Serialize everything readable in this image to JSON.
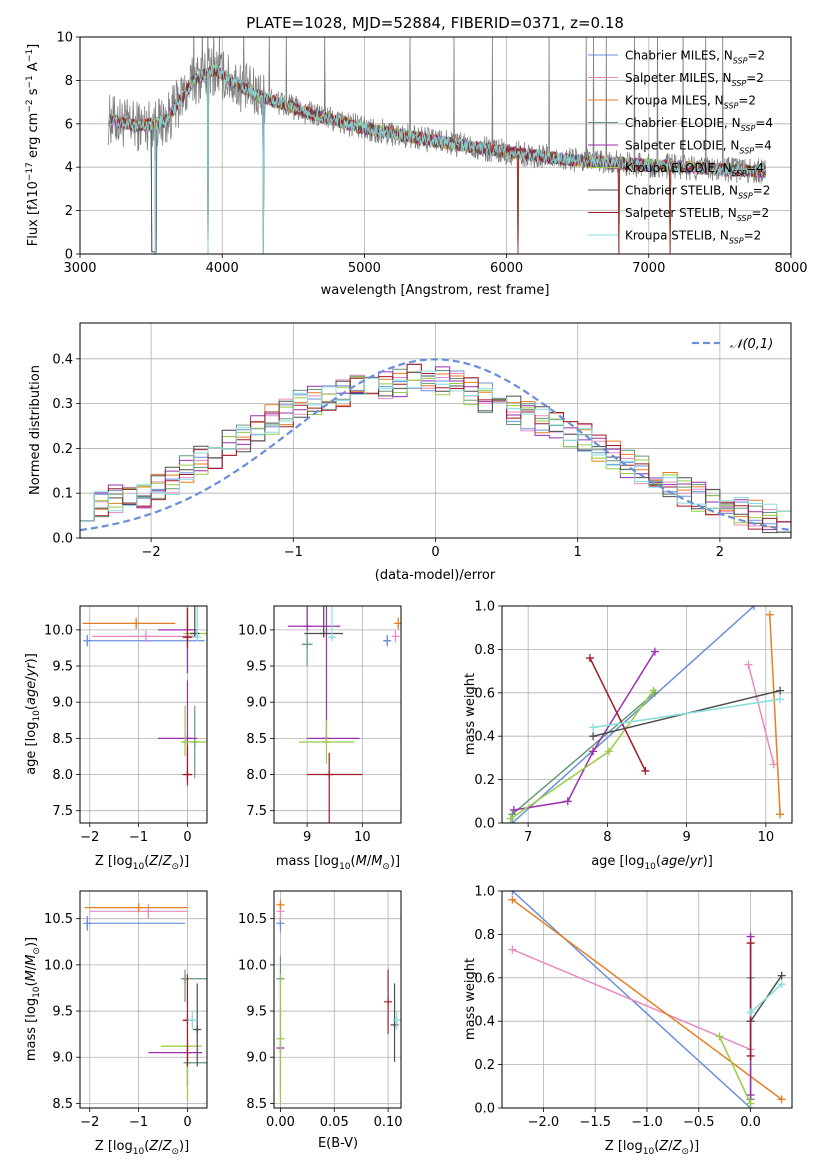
{
  "figure": {
    "colors": [
      "#6a8fd9",
      "#e88ac0",
      "#e67e22",
      "#66997a",
      "#9b2fae",
      "#99cc44",
      "#4d4d4d",
      "#a11a28",
      "#86dede"
    ],
    "series_names": [
      "Chabrier MILES",
      "Salpeter MILES",
      "Kroupa MILES",
      "Chabrier ELODIE",
      "Salpeter ELODIE",
      "Kroupa ELODIE",
      "Chabrier STELIB",
      "Salpeter STELIB",
      "Kroupa STELIB"
    ],
    "nssp": [
      2,
      2,
      2,
      4,
      4,
      4,
      2,
      2,
      2
    ]
  },
  "chart_data": [
    {
      "id": "spectrum",
      "type": "line",
      "title": "PLATE=1028, MJD=52884, FIBERID=0371, z=0.18",
      "xlabel": "wavelength [Angstrom, rest frame]",
      "ylabel": "Flux [fλ10⁻¹⁷ erg cm⁻² s⁻¹ A⁻¹]",
      "xlim": [
        3000,
        8000
      ],
      "ylim": [
        0,
        10
      ],
      "xticks": [
        "3000",
        "4000",
        "5000",
        "6000",
        "7000",
        "8000"
      ],
      "yticks": [
        "0",
        "2",
        "4",
        "6",
        "8",
        "10"
      ],
      "legend": [
        "Chabrier MILES, N_SSP=2",
        "Salpeter MILES, N_SSP=2",
        "Kroupa MILES, N_SSP=2",
        "Chabrier ELODIE, N_SSP=4",
        "Salpeter ELODIE, N_SSP=4",
        "Kroupa ELODIE, N_SSP=4",
        "Chabrier STELIB, N_SSP=2",
        "Salpeter STELIB, N_SSP=2",
        "Kroupa STELIB, N_SSP=2"
      ],
      "legend_position": "upper right",
      "continuum": {
        "x": [
          3200,
          3400,
          3600,
          3800,
          3950,
          4100,
          4300,
          4600,
          5000,
          5500,
          6000,
          6500,
          7000,
          7500,
          7800
        ],
        "y": [
          6.2,
          5.9,
          6.1,
          8.0,
          8.5,
          7.8,
          7.2,
          6.5,
          5.8,
          5.2,
          4.7,
          4.3,
          4.1,
          3.9,
          3.8
        ]
      },
      "model_dropouts": [
        3530,
        3900,
        4290,
        6080,
        6790,
        7150
      ],
      "observed_spikes": [
        3800,
        3860,
        3900,
        3940,
        3980,
        4150,
        4330,
        4450,
        4720,
        5320,
        5630,
        5900,
        6300,
        6560,
        6610,
        6700,
        6900,
        7060,
        7240,
        7400,
        7520
      ]
    },
    {
      "id": "residuals",
      "type": "line",
      "xlabel": "(data-model)/error",
      "ylabel": "Normed distribution",
      "xlim": [
        -2.5,
        2.5
      ],
      "ylim": [
        0,
        0.48
      ],
      "xticks": [
        "−2",
        "−1",
        "0",
        "1",
        "2"
      ],
      "yticks": [
        "0.0",
        "0.1",
        "0.2",
        "0.3",
        "0.4"
      ],
      "legend": [
        "𝒩(0,1)"
      ],
      "legend_position": "upper right",
      "bin_width": 0.1,
      "reference_curve": "normal(0,1) pdf",
      "histogram_shape": {
        "x": [
          -2.5,
          -2.0,
          -1.5,
          -1.0,
          -0.5,
          0.0,
          0.5,
          1.0,
          1.5,
          2.0,
          2.5
        ],
        "y": [
          0.07,
          0.1,
          0.2,
          0.29,
          0.34,
          0.36,
          0.29,
          0.23,
          0.14,
          0.07,
          0.03
        ]
      }
    },
    {
      "id": "age-vs-z",
      "type": "scatter",
      "xlabel": "Z [log10(Z/Z⊙)]",
      "ylabel": "age  [log10(age/yr)]",
      "xlim": [
        -2.2,
        0.4
      ],
      "ylim": [
        7.33,
        10.33
      ],
      "xticks": [
        "−2",
        "−1",
        "0"
      ],
      "yticks": [
        "7.5",
        "8.0",
        "8.5",
        "9.0",
        "9.5",
        "10.0"
      ],
      "series": [
        {
          "x": [
            -2.05
          ],
          "y": [
            9.85
          ],
          "xerr": [
            0.02,
            2.4
          ],
          "yerr": [
            0.08,
            0.08
          ]
        },
        {
          "x": [
            -0.85
          ],
          "y": [
            9.91
          ],
          "xerr": [
            1.1,
            1.0
          ],
          "yerr": [
            0.08,
            0.08
          ]
        },
        {
          "x": [
            -1.05
          ],
          "y": [
            10.09
          ],
          "xerr": [
            1.1,
            0.8
          ],
          "yerr": [
            0.08,
            0.08
          ]
        },
        {
          "x": [
            0.0,
            0.15
          ],
          "y": [
            9.9,
            8.45
          ],
          "xerr": [
            0.05,
            0.05
          ],
          "yerr": [
            0.5,
            0.5
          ]
        },
        {
          "x": [
            0.0,
            0.0
          ],
          "y": [
            10.0,
            8.5
          ],
          "xerr": [
            0.6,
            0.2
          ],
          "yerr": [
            0.6,
            0.8
          ]
        },
        {
          "x": [
            0.0,
            -0.05
          ],
          "y": [
            9.95,
            8.45
          ],
          "xerr": [
            0.05,
            0.45
          ],
          "yerr": [
            0.2,
            0.5
          ]
        },
        {
          "x": [
            0.15
          ],
          "y": [
            9.95
          ],
          "xerr": [
            0.1,
            0.1
          ],
          "yerr": [
            0.05,
            2.2
          ]
        },
        {
          "x": [
            0.0,
            0.0
          ],
          "y": [
            9.9,
            8.0
          ],
          "xerr": [
            0.1,
            0.1
          ],
          "yerr": [
            0.15,
            0.4
          ]
        },
        {
          "x": [
            0.2
          ],
          "y": [
            9.9
          ],
          "xerr": [
            0.05,
            0.05
          ],
          "yerr": [
            0.05,
            2.1
          ]
        }
      ]
    },
    {
      "id": "age-vs-mass",
      "type": "scatter",
      "xlabel": "mass [log10(M/M⊙)]",
      "ylabel": "",
      "xlim": [
        8.4,
        10.7
      ],
      "ylim": [
        7.33,
        10.33
      ],
      "xticks": [
        "9",
        "10"
      ],
      "yticks": [
        "7.5",
        "8.0",
        "8.5",
        "9.0",
        "9.5",
        "10.0"
      ],
      "series": [
        {
          "x": [
            10.45
          ],
          "y": [
            9.85
          ],
          "xerr": [
            0.05,
            0.05
          ],
          "yerr": [
            0.08,
            0.08
          ]
        },
        {
          "x": [
            10.6
          ],
          "y": [
            9.91
          ],
          "xerr": [
            0.05,
            0.05
          ],
          "yerr": [
            0.08,
            0.08
          ]
        },
        {
          "x": [
            10.65
          ],
          "y": [
            10.09
          ],
          "xerr": [
            0.05,
            0.05
          ],
          "yerr": [
            0.08,
            0.08
          ]
        },
        {
          "x": [
            9.0
          ],
          "y": [
            9.8
          ],
          "xerr": [
            0.1,
            0.1
          ],
          "yerr": [
            0.3,
            1.9
          ]
        },
        {
          "x": [
            9.0,
            9.35
          ],
          "y": [
            10.05,
            8.5
          ],
          "xerr": [
            0.35,
            0.6
          ],
          "yerr": [
            0.05,
            2.6
          ]
        },
        {
          "x": [
            9.35
          ],
          "y": [
            8.45
          ],
          "xerr": [
            0.5,
            0.5
          ],
          "yerr": [
            0.3,
            0.3
          ]
        },
        {
          "x": [
            9.3
          ],
          "y": [
            9.95
          ],
          "xerr": [
            0.35,
            0.35
          ],
          "yerr": [
            0.05,
            2.2
          ]
        },
        {
          "x": [
            9.4
          ],
          "y": [
            8.0
          ],
          "xerr": [
            0.4,
            0.6
          ],
          "yerr": [
            2.2,
            0.3
          ]
        },
        {
          "x": [
            9.45
          ],
          "y": [
            9.9
          ],
          "xerr": [
            0.05,
            0.05
          ],
          "yerr": [
            0.05,
            2.1
          ]
        }
      ]
    },
    {
      "id": "weight-vs-age",
      "type": "line",
      "xlabel": "age  [log10(age/yr)]",
      "ylabel": "mass weight",
      "xlim": [
        6.67,
        10.33
      ],
      "ylim": [
        0,
        1
      ],
      "xticks": [
        "7",
        "8",
        "9",
        "10"
      ],
      "yticks": [
        "0.0",
        "0.2",
        "0.4",
        "0.6",
        "0.8",
        "1.0"
      ],
      "series": [
        {
          "x": [
            6.8,
            9.85
          ],
          "y": [
            0.0,
            1.0
          ]
        },
        {
          "x": [
            9.78,
            10.1
          ],
          "y": [
            0.73,
            0.27
          ]
        },
        {
          "x": [
            10.05,
            10.18
          ],
          "y": [
            0.96,
            0.04
          ]
        },
        {
          "x": [
            6.8,
            8.6
          ],
          "y": [
            0.04,
            0.6
          ]
        },
        {
          "x": [
            6.82,
            7.5,
            7.82,
            8.6
          ],
          "y": [
            0.06,
            0.1,
            0.33,
            0.79
          ]
        },
        {
          "x": [
            6.78,
            8.02,
            8.58
          ],
          "y": [
            0.02,
            0.33,
            0.61
          ]
        },
        {
          "x": [
            7.82,
            10.18
          ],
          "y": [
            0.4,
            0.61
          ]
        },
        {
          "x": [
            7.78,
            8.48
          ],
          "y": [
            0.76,
            0.24
          ]
        },
        {
          "x": [
            7.82,
            10.18
          ],
          "y": [
            0.44,
            0.57
          ]
        }
      ]
    },
    {
      "id": "mass-vs-z",
      "type": "scatter",
      "xlabel": "Z [log10(Z/Z⊙)]",
      "ylabel": "mass [log10(M/M⊙)]",
      "xlim": [
        -2.2,
        0.4
      ],
      "ylim": [
        8.45,
        10.8
      ],
      "xticks": [
        "−2",
        "−1",
        "0"
      ],
      "yticks": [
        "8.5",
        "9.0",
        "9.5",
        "10.0",
        "10.5"
      ],
      "series": [
        {
          "x": [
            -2.05
          ],
          "y": [
            10.45
          ],
          "xerr": [
            0.02,
            2.0
          ],
          "yerr": [
            0.08,
            0.08
          ]
        },
        {
          "x": [
            -0.8
          ],
          "y": [
            10.58
          ],
          "xerr": [
            1.2,
            0.8
          ],
          "yerr": [
            0.08,
            0.08
          ]
        },
        {
          "x": [
            -1.0
          ],
          "y": [
            10.62
          ],
          "xerr": [
            1.1,
            1.0
          ],
          "yerr": [
            0.05,
            0.05
          ]
        },
        {
          "x": [
            -0.05,
            0.0
          ],
          "y": [
            9.85,
            8.94
          ],
          "xerr": [
            0.05,
            0.6
          ],
          "yerr": [
            0.25,
            0.1
          ]
        },
        {
          "x": [
            0.0
          ],
          "y": [
            9.05
          ],
          "xerr": [
            0.8,
            0.3
          ],
          "yerr": [
            0.35,
            0.1
          ]
        },
        {
          "x": [
            0.0
          ],
          "y": [
            9.12
          ],
          "xerr": [
            0.55,
            0.3
          ],
          "yerr": [
            0.6,
            0.2
          ]
        },
        {
          "x": [
            0.2
          ],
          "y": [
            9.3
          ],
          "xerr": [
            0.05,
            0.05
          ],
          "yerr": [
            0.4,
            0.5
          ]
        },
        {
          "x": [
            0.0
          ],
          "y": [
            9.4
          ],
          "xerr": [
            0.1,
            0.15
          ],
          "yerr": [
            0.5,
            0.5
          ]
        },
        {
          "x": [
            0.1
          ],
          "y": [
            9.4
          ],
          "xerr": [
            0.1,
            0.1
          ],
          "yerr": [
            0.1,
            0.1
          ]
        }
      ]
    },
    {
      "id": "mass-vs-ebv",
      "type": "scatter",
      "xlabel": "E(B-V)",
      "ylabel": "",
      "xlim": [
        -0.006,
        0.112
      ],
      "ylim": [
        8.45,
        10.8
      ],
      "xticks": [
        "0.00",
        "0.05",
        "0.10"
      ],
      "yticks": [
        "8.5",
        "9.0",
        "9.5",
        "10.0",
        "10.5"
      ],
      "series": [
        {
          "x": [
            0.0
          ],
          "y": [
            10.45
          ],
          "xerr": [
            0.0,
            0.0
          ],
          "yerr": [
            0.1,
            0.1
          ]
        },
        {
          "x": [
            0.0
          ],
          "y": [
            10.58
          ],
          "xerr": [
            0.0,
            0.0
          ],
          "yerr": [
            0.1,
            0.1
          ]
        },
        {
          "x": [
            0.0
          ],
          "y": [
            10.65
          ],
          "xerr": [
            0.0,
            0.0
          ],
          "yerr": [
            0.05,
            0.05
          ]
        },
        {
          "x": [
            0.0
          ],
          "y": [
            9.85
          ],
          "xerr": [
            0.0,
            0.0
          ],
          "yerr": [
            0.25,
            0.25
          ]
        },
        {
          "x": [
            0.0
          ],
          "y": [
            9.1
          ],
          "xerr": [
            0.0,
            0.0
          ],
          "yerr": [
            0.5,
            0.5
          ]
        },
        {
          "x": [
            0.0
          ],
          "y": [
            9.2
          ],
          "xerr": [
            0.0,
            0.0
          ],
          "yerr": [
            0.7,
            0.7
          ]
        },
        {
          "x": [
            0.106
          ],
          "y": [
            9.35
          ],
          "xerr": [
            0.0,
            0.0
          ],
          "yerr": [
            0.4,
            0.45
          ]
        },
        {
          "x": [
            0.1
          ],
          "y": [
            9.6
          ],
          "xerr": [
            0.0,
            0.0
          ],
          "yerr": [
            0.35,
            0.35
          ]
        },
        {
          "x": [
            0.108
          ],
          "y": [
            9.4
          ],
          "xerr": [
            0.0,
            0.0
          ],
          "yerr": [
            0.1,
            0.1
          ]
        }
      ]
    },
    {
      "id": "weight-vs-z",
      "type": "line",
      "xlabel": "Z [log10(Z/Z⊙)]",
      "ylabel": "mass weight",
      "xlim": [
        -2.4,
        0.4
      ],
      "ylim": [
        0,
        1
      ],
      "xticks": [
        "−2.0",
        "−1.5",
        "−1.0",
        "−0.5",
        "0.0"
      ],
      "yticks": [
        "0.0",
        "0.2",
        "0.4",
        "0.6",
        "0.8",
        "1.0"
      ],
      "series": [
        {
          "x": [
            -2.3,
            0.0
          ],
          "y": [
            1.0,
            0.0
          ]
        },
        {
          "x": [
            -2.3,
            0.0
          ],
          "y": [
            0.73,
            0.27
          ]
        },
        {
          "x": [
            -2.3,
            0.3
          ],
          "y": [
            0.96,
            0.04
          ]
        },
        {
          "x": [
            0.0,
            0.0
          ],
          "y": [
            0.04,
            0.6
          ]
        },
        {
          "x": [
            0.0,
            0.0
          ],
          "y": [
            0.79,
            0.06
          ]
        },
        {
          "x": [
            -0.3,
            0.0
          ],
          "y": [
            0.33,
            0.02
          ]
        },
        {
          "x": [
            0.0,
            0.3
          ],
          "y": [
            0.4,
            0.61
          ]
        },
        {
          "x": [
            0.0,
            0.0
          ],
          "y": [
            0.76,
            0.24
          ]
        },
        {
          "x": [
            0.0,
            0.3
          ],
          "y": [
            0.44,
            0.57
          ]
        }
      ]
    }
  ]
}
